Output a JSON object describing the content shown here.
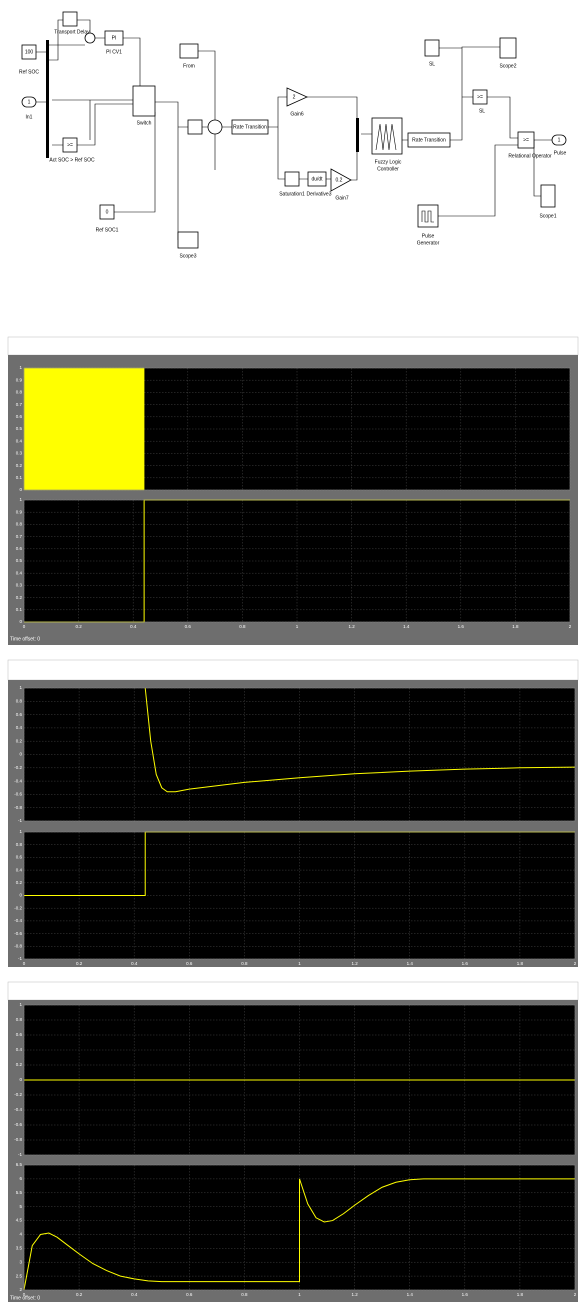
{
  "diagram": {
    "blocks": [
      {
        "name": "Ref SOC",
        "text": "100"
      },
      {
        "name": "In1",
        "text": "1"
      },
      {
        "name": "Transport Delay"
      },
      {
        "name": "PI CV1",
        "text": "PI"
      },
      {
        "name": "Act SOC > Ref SOC",
        "text": ">="
      },
      {
        "name": "Switch"
      },
      {
        "name": "Ref SOC1",
        "text": "0"
      },
      {
        "name": "From"
      },
      {
        "name": "Scope3"
      },
      {
        "name": "Rate Transition"
      },
      {
        "name": "Gain6",
        "text": "2"
      },
      {
        "name": "Saturation1"
      },
      {
        "name": "Derivative3",
        "text": "du/dt"
      },
      {
        "name": "Gain7",
        "text": "0.2"
      },
      {
        "name_lines": [
          "Fuzzy Logic",
          "Controller"
        ]
      },
      {
        "name": "Rate Transition"
      },
      {
        "name": "SL"
      },
      {
        "name": "Scope2"
      },
      {
        "name": "SL",
        "text": ">="
      },
      {
        "name": "Relational Operator",
        "text": ">="
      },
      {
        "name": "Pulse",
        "text": "1"
      },
      {
        "name": "Scope1"
      },
      {
        "name_lines": [
          "Pulse",
          "Generator"
        ]
      }
    ]
  },
  "scopes": [
    {
      "footer": "Time offset:  0"
    },
    {},
    {
      "footer": "Time offset:  0"
    }
  ],
  "chart_data": [
    {
      "type": "line",
      "xlim": [
        0,
        2
      ],
      "xticks": [
        0,
        0.2,
        0.4,
        0.6,
        0.8,
        1,
        1.2,
        1.4,
        1.6,
        1.8,
        2
      ],
      "xticklabels": false,
      "ylim": [
        0,
        1
      ],
      "yticks": [
        0,
        0.1,
        0.2,
        0.3,
        0.4,
        0.5,
        0.6,
        0.7,
        0.8,
        0.9,
        1
      ],
      "grid": true,
      "series": [
        {
          "color": "#ffff00",
          "fill": true,
          "x": [
            0,
            0.44
          ],
          "values": [
            1,
            1
          ]
        }
      ]
    },
    {
      "type": "line",
      "xlim": [
        0,
        2
      ],
      "xticks": [
        0,
        0.2,
        0.4,
        0.6,
        0.8,
        1,
        1.2,
        1.4,
        1.6,
        1.8,
        2
      ],
      "xticklabels": true,
      "ylim": [
        0,
        1
      ],
      "yticks": [
        0,
        0.1,
        0.2,
        0.3,
        0.4,
        0.5,
        0.6,
        0.7,
        0.8,
        0.9,
        1
      ],
      "grid": true,
      "series": [
        {
          "color": "#ffff00",
          "x": [
            0,
            0.44,
            0.44,
            2
          ],
          "values": [
            0,
            0,
            1,
            1
          ]
        }
      ]
    },
    {
      "type": "line",
      "xlim": [
        0,
        2
      ],
      "xticks": [
        0,
        0.2,
        0.4,
        0.6,
        0.8,
        1,
        1.2,
        1.4,
        1.6,
        1.8,
        2
      ],
      "xticklabels": false,
      "ylim": [
        -1,
        1
      ],
      "yticks": [
        -1,
        -0.8,
        -0.6,
        -0.4,
        -0.2,
        0,
        0.2,
        0.4,
        0.6,
        0.8,
        1
      ],
      "grid": true,
      "series": [
        {
          "color": "#ffff00",
          "x": [
            0.44,
            0.46,
            0.48,
            0.5,
            0.52,
            0.55,
            0.6,
            0.8,
            1,
            1.2,
            1.4,
            1.6,
            1.8,
            2
          ],
          "values": [
            1,
            0.2,
            -0.3,
            -0.5,
            -0.56,
            -0.56,
            -0.52,
            -0.42,
            -0.35,
            -0.29,
            -0.25,
            -0.22,
            -0.2,
            -0.19
          ]
        }
      ]
    },
    {
      "type": "line",
      "xlim": [
        0,
        2
      ],
      "xticks": [
        0,
        0.2,
        0.4,
        0.6,
        0.8,
        1,
        1.2,
        1.4,
        1.6,
        1.8,
        2
      ],
      "xticklabels": true,
      "ylim": [
        -1,
        1
      ],
      "yticks": [
        -1,
        -0.8,
        -0.6,
        -0.4,
        -0.2,
        0,
        0.2,
        0.4,
        0.6,
        0.8,
        1
      ],
      "grid": true,
      "series": [
        {
          "color": "#ffff00",
          "x": [
            0,
            0.44,
            0.44,
            2
          ],
          "values": [
            0,
            0,
            1,
            1
          ]
        }
      ]
    },
    {
      "type": "line",
      "xlim": [
        0,
        2
      ],
      "xticks": [
        0,
        0.2,
        0.4,
        0.6,
        0.8,
        1,
        1.2,
        1.4,
        1.6,
        1.8,
        2
      ],
      "xticklabels": false,
      "ylim": [
        -1,
        1
      ],
      "yticks": [
        -1,
        -0.8,
        -0.6,
        -0.4,
        -0.2,
        0,
        0.2,
        0.4,
        0.6,
        0.8,
        1
      ],
      "grid": true,
      "series": [
        {
          "color": "#ffff00",
          "x": [
            0,
            2
          ],
          "values": [
            0,
            0
          ]
        }
      ]
    },
    {
      "type": "line",
      "xlim": [
        0,
        2
      ],
      "xticks": [
        0,
        0.2,
        0.4,
        0.6,
        0.8,
        1,
        1.2,
        1.4,
        1.6,
        1.8,
        2
      ],
      "xticklabels": true,
      "ylim": [
        2,
        6.5
      ],
      "yticks": [
        2,
        2.5,
        3,
        3.5,
        4,
        4.5,
        5,
        5.5,
        6,
        6.5
      ],
      "grid": true,
      "series": [
        {
          "color": "#ffff00",
          "x": [
            0,
            0.03,
            0.06,
            0.09,
            0.12,
            0.16,
            0.2,
            0.25,
            0.3,
            0.35,
            0.4,
            0.45,
            0.5,
            0.6,
            0.8,
            1,
            1,
            1.03,
            1.06,
            1.09,
            1.12,
            1.16,
            1.2,
            1.25,
            1.3,
            1.35,
            1.4,
            1.45,
            1.5,
            1.7,
            2
          ],
          "values": [
            2,
            3.6,
            4,
            4.05,
            3.9,
            3.6,
            3.3,
            2.95,
            2.7,
            2.5,
            2.4,
            2.33,
            2.3,
            2.3,
            2.3,
            2.3,
            6,
            5.1,
            4.6,
            4.45,
            4.5,
            4.75,
            5.05,
            5.4,
            5.7,
            5.88,
            5.97,
            6,
            6,
            6,
            6
          ]
        }
      ]
    }
  ]
}
